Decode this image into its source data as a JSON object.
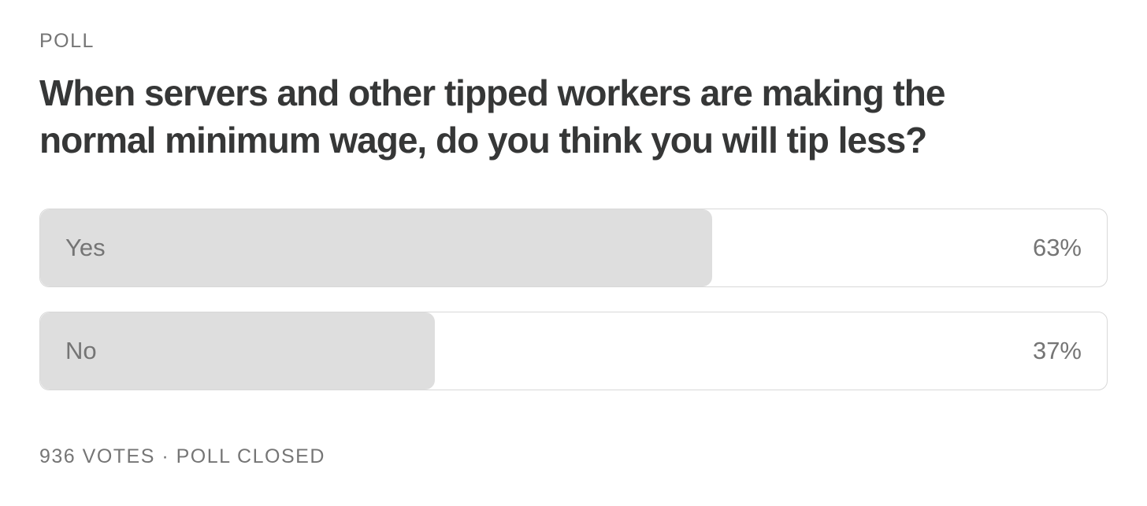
{
  "poll": {
    "label": "POLL",
    "question": "When servers and other tipped workers are making the normal minimum wage, do you think you will tip less?",
    "options": [
      {
        "label": "Yes",
        "value": 63,
        "value_label": "63%"
      },
      {
        "label": "No",
        "value": 37,
        "value_label": "37%"
      }
    ],
    "footer": "936 VOTES · POLL CLOSED"
  }
}
